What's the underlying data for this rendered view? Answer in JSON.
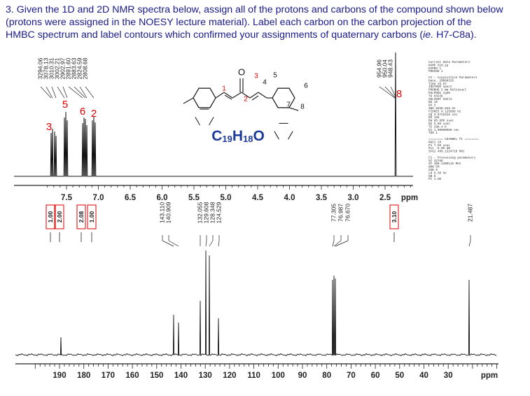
{
  "question": {
    "line1": "3. Given the 1D and 2D NMR spectra below, assign all of the protons and carbons of the compound shown below",
    "line2": "(protons were assigned in the NOESY lecture material).  Label each carbon on the carbon projection of the",
    "line3a": "HMBC spectrum and label contours which confirmed your assignments of quaternary carbons (",
    "line3b": "ie.",
    "line3c": " H7-C8a)."
  },
  "h1": {
    "peaks_left": [
      "3294.06",
      "3078.13",
      "3010.31",
      "3002.21",
      "2902.97",
      "2891.60",
      "2883.63",
      "2824.59",
      "2808.68"
    ],
    "peaks_right": [
      "954.96",
      "950.04",
      "948.43"
    ],
    "axis": [
      "7.5",
      "7.0",
      "6.5",
      "6.0",
      "5.5",
      "5.0",
      "4.5",
      "4.0",
      "3.5",
      "3.0",
      "2.5"
    ],
    "unit": "ppm",
    "integrals": [
      "1.00",
      "2.00",
      "2.08",
      "1.00",
      "3.10"
    ],
    "labels": [
      "5",
      "6",
      "2",
      "3",
      "8"
    ]
  },
  "structure": {
    "oxygen": "O",
    "numbers": [
      "1",
      "2",
      "3",
      "4",
      "5",
      "6",
      "7",
      "8"
    ]
  },
  "formula": {
    "c": "C",
    "c_sub": "19",
    "h": "H",
    "h_sub": "18",
    "o": "O"
  },
  "parameters": [
    "Current Data Parameters",
    "NAME            S10_1p",
    "EXPNO                1",
    "PROCNO               1",
    "",
    "F2 - Acquisition Parameters",
    "Date_         20080325",
    "Time             16.57",
    "INSTRUM         spect",
    "PROBHD   5 mm Multinucl",
    "PULPROG           zg30",
    "TD               65536",
    "SOLVENT          CDCl3",
    "NS                  16",
    "DS                   2",
    "SWH         8250.825 Hz",
    "FIDRES      0.125898 Hz",
    "AQ          3.9715316 sec",
    "RG                 128",
    "DW            60.600 usec",
    "DE              6.00 usec",
    "TE               298.4 K",
    "D1        1.00000000 sec",
    "TD0                  1",
    "",
    "======== CHANNEL f1 ========",
    "NUC1                1H",
    "P1              7.50 usec",
    "PL1            -6.00 dB",
    "SFO1       400.1324710 MHz",
    "",
    "F2 - Processing parameters",
    "SI               32768",
    "SF         400.1300115 MHz",
    "WDW                 EM",
    "SSB                  0",
    "LB               0.30 Hz",
    "GB                   0",
    "PC                1.00"
  ],
  "c13": {
    "peaks": [
      "143.110",
      "140.909",
      "132.055",
      "129.608",
      "128.348",
      "124.529",
      "77.305",
      "76.987",
      "76.670",
      "21.487"
    ],
    "axis": [
      "190",
      "180",
      "170",
      "160",
      "150",
      "140",
      "130",
      "120",
      "110",
      "100",
      "90",
      "80",
      "70",
      "60",
      "50",
      "40",
      "30"
    ],
    "unit": "ppm"
  }
}
